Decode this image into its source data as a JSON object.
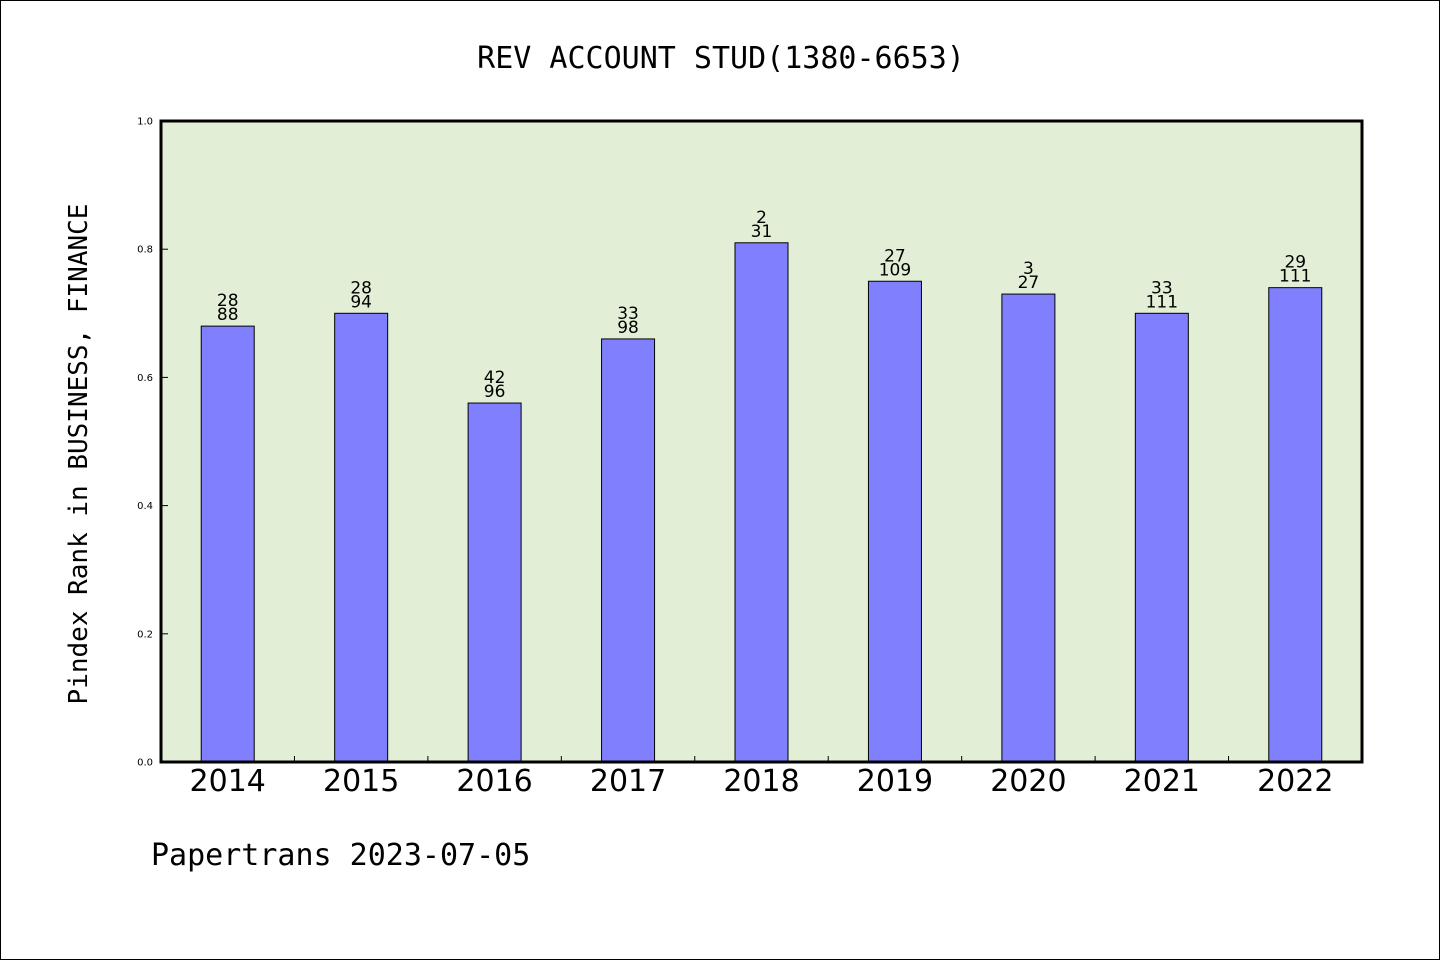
{
  "chart_data": {
    "type": "bar",
    "title": "REV ACCOUNT STUD(1380-6653)",
    "xlabel": "",
    "ylabel": "Pindex Rank in BUSINESS, FINANCE",
    "footer": "Papertrans 2023-07-05",
    "categories": [
      "2014",
      "2015",
      "2016",
      "2017",
      "2018",
      "2019",
      "2020",
      "2021",
      "2022"
    ],
    "values": [
      0.68,
      0.7,
      0.56,
      0.66,
      0.81,
      0.75,
      0.73,
      0.7,
      0.74
    ],
    "rank_labels": [
      "28",
      "28",
      "42",
      "33",
      "2",
      "27",
      "3",
      "33",
      "29"
    ],
    "total_labels": [
      "88",
      "94",
      "96",
      "98",
      "31",
      "109",
      "27",
      "111",
      "111"
    ],
    "ylim": [
      0,
      1.0
    ],
    "yticks": [
      "0.0",
      "0.2",
      "0.4",
      "0.6",
      "0.8",
      "1.0"
    ],
    "grid": false,
    "colors": {
      "bar": "#8080ff",
      "plot_background": "#e2efd6",
      "axis": "#000000"
    }
  }
}
